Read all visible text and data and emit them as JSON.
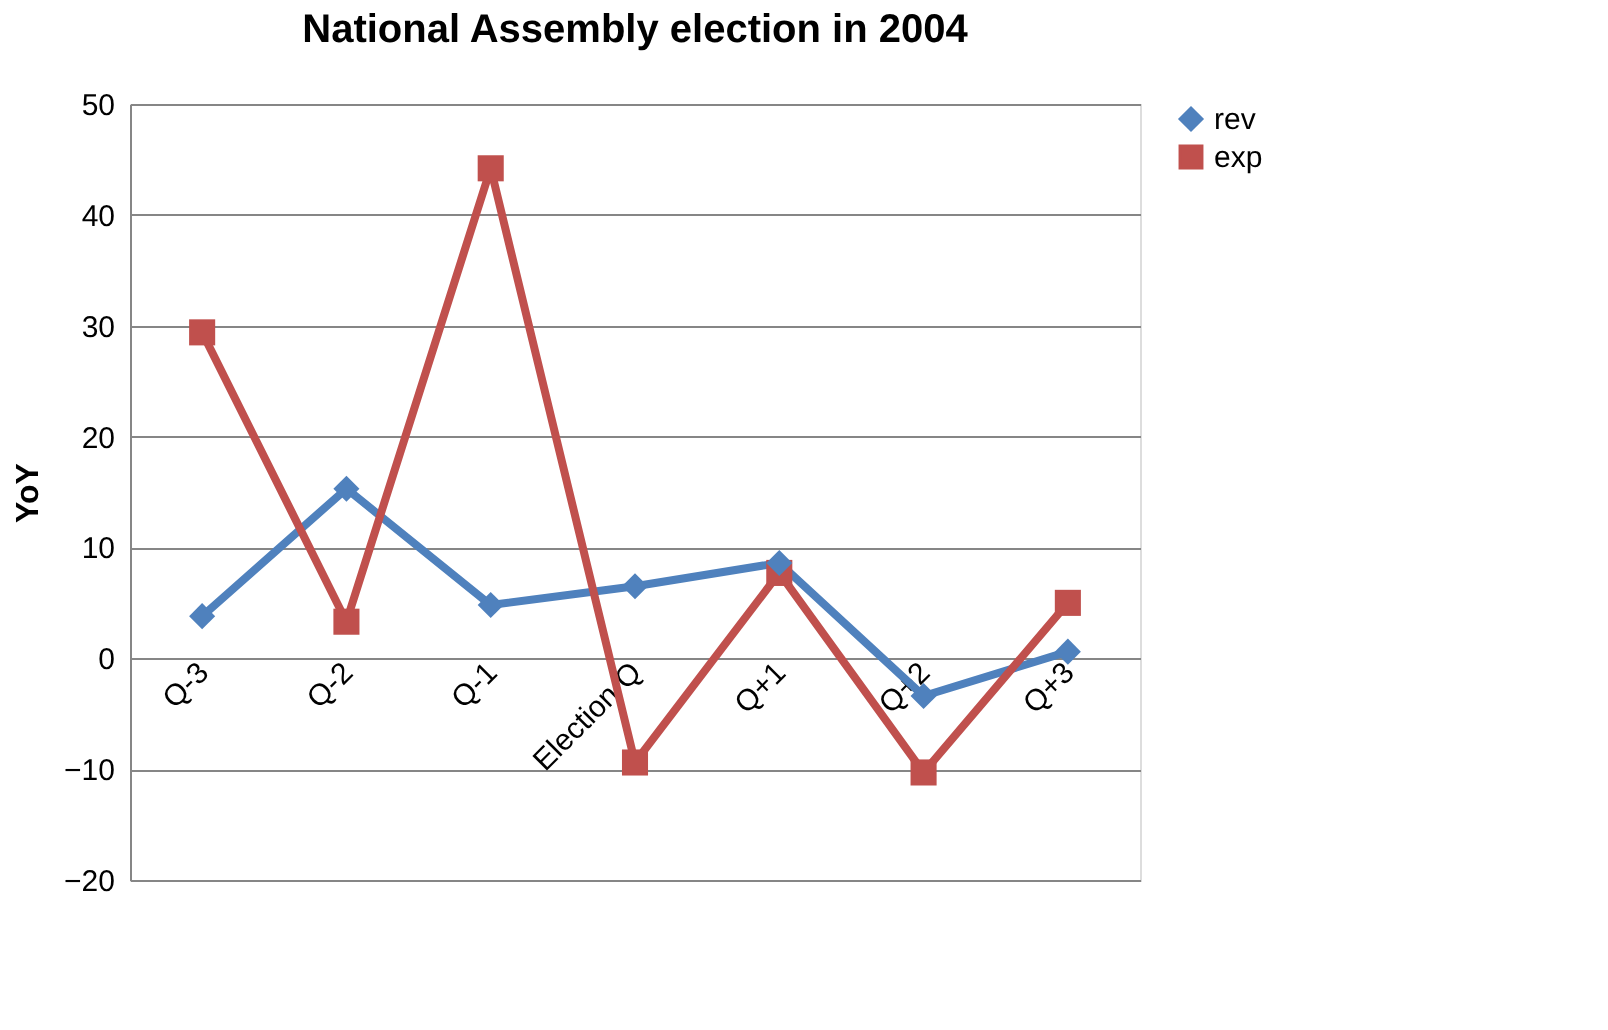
{
  "chart_data": {
    "type": "line",
    "title": "National Assembly election in 2004",
    "ylabel": "YoY",
    "categories": [
      "Q-3",
      "Q-2",
      "Q-1",
      "Election Q",
      "Q+1",
      "Q+2",
      "Q+3"
    ],
    "series": [
      {
        "name": "rev",
        "color": "#4f81bd",
        "marker": "diamond",
        "values": [
          3.8,
          15.3,
          4.8,
          6.5,
          8.6,
          -3.4,
          0.6
        ]
      },
      {
        "name": "exp",
        "color": "#c0504d",
        "marker": "square",
        "values": [
          29.4,
          3.3,
          44.2,
          -9.4,
          7.7,
          -10.3,
          5.0
        ]
      }
    ],
    "ylim": [
      -20,
      50
    ],
    "yticks": [
      -20,
      -10,
      0,
      10,
      20,
      30,
      40,
      50
    ],
    "grid": "y",
    "legend": "right",
    "line_style": "solid"
  }
}
